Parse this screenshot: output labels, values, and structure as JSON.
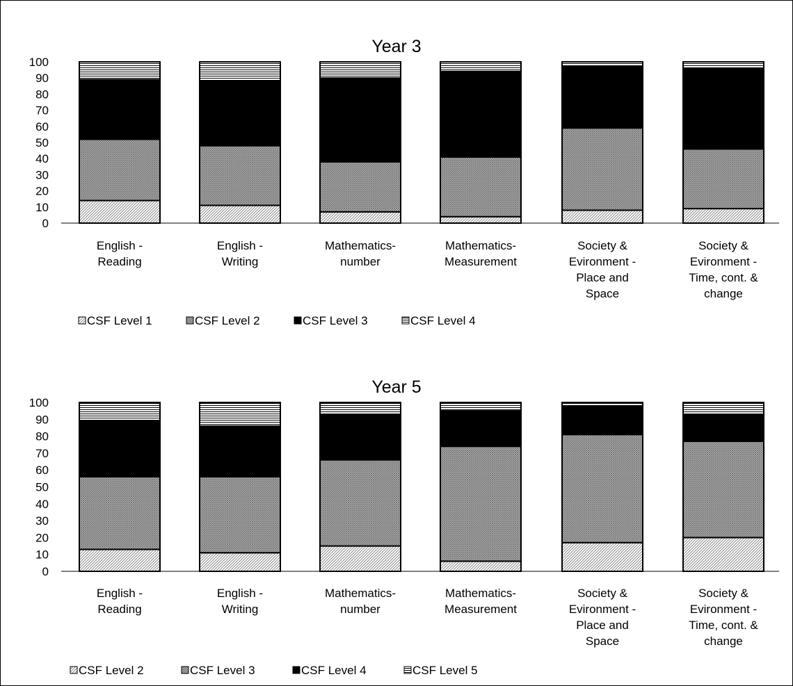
{
  "chart_data": [
    {
      "type": "bar",
      "stacked": true,
      "title": "Year 3",
      "ylim": [
        0,
        100
      ],
      "yticks": [
        0,
        10,
        20,
        30,
        40,
        50,
        60,
        70,
        80,
        90,
        100
      ],
      "categories": [
        [
          "English -",
          "Reading"
        ],
        [
          "English -",
          "Writing"
        ],
        [
          "Mathematics-",
          "number"
        ],
        [
          "Mathematics-",
          "Measurement"
        ],
        [
          "Society &",
          "Evironment -",
          "Place and",
          "Space"
        ],
        [
          "Society &",
          "Evironment -",
          "Time, cont. &",
          "change"
        ]
      ],
      "series": [
        {
          "name": "CSF Level 1",
          "pattern": "light-diag",
          "values": [
            14,
            11,
            7,
            4,
            8,
            9
          ]
        },
        {
          "name": "CSF Level 2",
          "pattern": "dense-grid",
          "values": [
            38,
            37,
            31,
            37,
            51,
            37
          ]
        },
        {
          "name": "CSF Level 3",
          "pattern": "solid-black",
          "values": [
            37,
            40,
            52,
            53,
            38,
            50
          ]
        },
        {
          "name": "CSF Level 4",
          "pattern": "horizontal-lines",
          "values": [
            11,
            12,
            10,
            6,
            3,
            4
          ]
        }
      ],
      "legend_position": "bottom-left"
    },
    {
      "type": "bar",
      "stacked": true,
      "title": "Year 5",
      "ylim": [
        0,
        100
      ],
      "yticks": [
        0,
        10,
        20,
        30,
        40,
        50,
        60,
        70,
        80,
        90,
        100
      ],
      "categories": [
        [
          "English -",
          "Reading"
        ],
        [
          "English -",
          "Writing"
        ],
        [
          "Mathematics-",
          "number"
        ],
        [
          "Mathematics-",
          "Measurement"
        ],
        [
          "Society &",
          "Evironment -",
          "Place and",
          "Space"
        ],
        [
          "Society &",
          "Evironment -",
          "Time, cont. &",
          "change"
        ]
      ],
      "series": [
        {
          "name": "CSF Level 2",
          "pattern": "light-diag",
          "values": [
            13,
            11,
            15,
            6,
            17,
            20
          ]
        },
        {
          "name": "CSF Level 3",
          "pattern": "dense-grid",
          "values": [
            43,
            45,
            51,
            68,
            64,
            57
          ]
        },
        {
          "name": "CSF Level 4",
          "pattern": "solid-black",
          "values": [
            33,
            30,
            27,
            21,
            17,
            16
          ]
        },
        {
          "name": "CSF Level 5",
          "pattern": "horizontal-lines",
          "values": [
            11,
            14,
            7,
            5,
            2,
            7
          ]
        }
      ],
      "legend_position": "bottom-left"
    }
  ],
  "colors": {
    "background": "#ffffff",
    "ink": "#000000"
  }
}
